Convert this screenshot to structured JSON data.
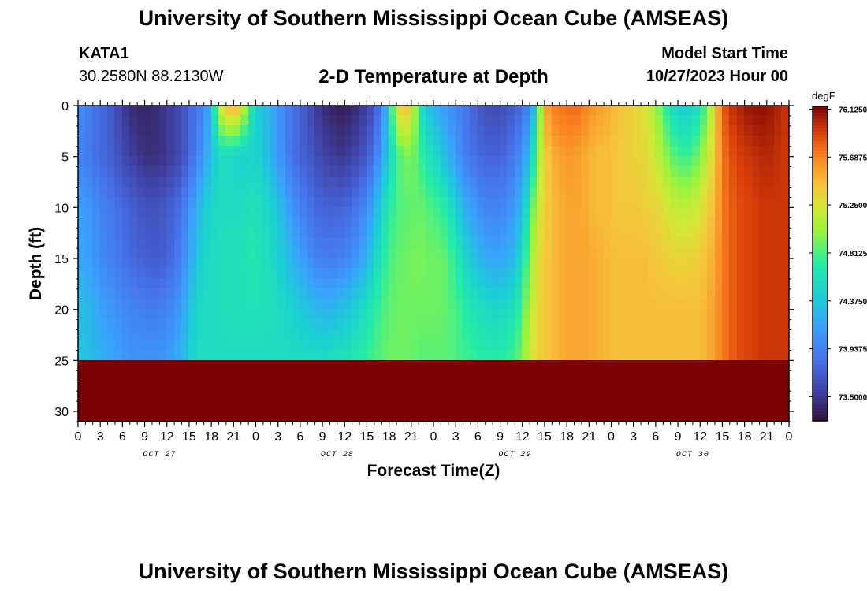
{
  "header": {
    "title": "University of Southern Mississippi Ocean Cube (AMSEAS)",
    "station_id": "KATA1",
    "station_coords": "30.2580N  88.2130W",
    "subtitle": "2-D Temperature at Depth",
    "model_start_label": "Model Start Time",
    "model_start_value": "10/27/2023 Hour 00"
  },
  "footer": {
    "title": "University of Southern Mississippi Ocean Cube (AMSEAS)"
  },
  "chart_data": {
    "type": "heatmap",
    "title": "2-D Temperature at Depth",
    "xlabel": "Forecast Time(Z)",
    "ylabel": "Depth (ft)",
    "xlim": [
      0,
      96
    ],
    "ylim": [
      0,
      31
    ],
    "y_ticks": [
      0,
      5,
      10,
      15,
      20,
      25,
      30
    ],
    "x_tick_labels": [
      "0",
      "3",
      "6",
      "9",
      "12",
      "15",
      "18",
      "21",
      "0",
      "3",
      "6",
      "9",
      "12",
      "15",
      "18",
      "21",
      "0",
      "3",
      "6",
      "9",
      "12",
      "15",
      "18",
      "21",
      "0",
      "3",
      "6",
      "9",
      "12",
      "15",
      "18",
      "21",
      "0"
    ],
    "day_labels": [
      {
        "label": "OCT 27",
        "hour": 11
      },
      {
        "label": "OCT 28",
        "hour": 35
      },
      {
        "label": "OCT 29",
        "hour": 59
      },
      {
        "label": "OCT 30",
        "hour": 83
      }
    ],
    "colorbar": {
      "unit": "degF",
      "range": [
        73.28,
        76.15
      ],
      "tick_values": [
        76.125,
        75.6875,
        75.25,
        74.8125,
        74.375,
        73.9375,
        73.5
      ],
      "tick_labels": [
        "76.1250",
        "75.6875",
        "75.2500",
        "74.8125",
        "74.3750",
        "73.9375",
        "73.5000"
      ]
    },
    "temperature_profiles": {
      "unit": "degF",
      "depths_ft": [
        0,
        5,
        10,
        15,
        20,
        25,
        31
      ],
      "hours": [
        0,
        1,
        2,
        3,
        4,
        5,
        6,
        7,
        8,
        9,
        10,
        11,
        12,
        13,
        14,
        15,
        16,
        17,
        18,
        19,
        20,
        21,
        22,
        23,
        24,
        25,
        26,
        27,
        28,
        29,
        30,
        31,
        32,
        33,
        34,
        35,
        36,
        37,
        38,
        39,
        40,
        41,
        42,
        43,
        44,
        45,
        46,
        47,
        48,
        49,
        50,
        51,
        52,
        53,
        54,
        55,
        56,
        57,
        58,
        59,
        60,
        61,
        62,
        63,
        64,
        65,
        66,
        67,
        68,
        69,
        70,
        71,
        72,
        73,
        74,
        75,
        76,
        77,
        78,
        79,
        80,
        81,
        82,
        83,
        84,
        85,
        86,
        87,
        88,
        89,
        90,
        91,
        92,
        93,
        94,
        95,
        96
      ],
      "values": [
        [
          74.05,
          73.95,
          74.15,
          74.15,
          74.35,
          74.35
        ],
        [
          74.0,
          73.9,
          74.1,
          74.15,
          74.3,
          74.35
        ],
        [
          73.85,
          73.85,
          74.05,
          74.1,
          74.25,
          74.3
        ],
        [
          73.8,
          73.8,
          73.95,
          74.0,
          74.15,
          74.25
        ],
        [
          73.75,
          73.75,
          73.9,
          73.95,
          74.1,
          74.2
        ],
        [
          73.65,
          73.7,
          73.85,
          73.9,
          74.05,
          74.15
        ],
        [
          73.55,
          73.6,
          73.8,
          73.85,
          74.0,
          74.1
        ],
        [
          73.45,
          73.55,
          73.75,
          73.8,
          73.95,
          74.05
        ],
        [
          73.4,
          73.5,
          73.7,
          73.75,
          73.95,
          74.05
        ],
        [
          73.4,
          73.45,
          73.65,
          73.75,
          73.9,
          74.05
        ],
        [
          73.4,
          73.45,
          73.65,
          73.7,
          73.9,
          74.05
        ],
        [
          73.45,
          73.45,
          73.65,
          73.7,
          73.9,
          74.05
        ],
        [
          73.5,
          73.5,
          73.7,
          73.75,
          73.95,
          74.1
        ],
        [
          73.55,
          73.55,
          73.75,
          73.8,
          74.0,
          74.15
        ],
        [
          73.6,
          73.6,
          73.85,
          73.95,
          74.1,
          74.25
        ],
        [
          73.75,
          73.75,
          74.0,
          74.1,
          74.3,
          74.4
        ],
        [
          73.85,
          73.9,
          74.2,
          74.35,
          74.5,
          74.55
        ],
        [
          73.95,
          74.1,
          74.4,
          74.5,
          74.55,
          74.55
        ],
        [
          74.25,
          74.3,
          74.5,
          74.55,
          74.55,
          74.55
        ],
        [
          75.1,
          74.55,
          74.55,
          74.55,
          74.55,
          74.55
        ],
        [
          75.45,
          74.55,
          74.55,
          74.6,
          74.6,
          74.55
        ],
        [
          75.55,
          74.5,
          74.55,
          74.6,
          74.6,
          74.55
        ],
        [
          75.45,
          74.45,
          74.55,
          74.6,
          74.6,
          74.55
        ],
        [
          74.8,
          74.45,
          74.6,
          74.65,
          74.6,
          74.55
        ],
        [
          74.45,
          74.5,
          74.6,
          74.65,
          74.6,
          74.55
        ],
        [
          74.35,
          74.4,
          74.55,
          74.6,
          74.6,
          74.55
        ],
        [
          74.25,
          74.25,
          74.5,
          74.55,
          74.6,
          74.55
        ],
        [
          74.05,
          74.1,
          74.35,
          74.45,
          74.55,
          74.55
        ],
        [
          73.95,
          73.95,
          74.2,
          74.35,
          74.5,
          74.55
        ],
        [
          73.85,
          73.85,
          74.05,
          74.25,
          74.45,
          74.55
        ],
        [
          73.75,
          73.75,
          73.95,
          74.15,
          74.4,
          74.55
        ],
        [
          73.65,
          73.7,
          73.85,
          74.05,
          74.35,
          74.55
        ],
        [
          73.55,
          73.65,
          73.8,
          73.95,
          74.3,
          74.55
        ],
        [
          73.45,
          73.55,
          73.75,
          73.9,
          74.25,
          74.55
        ],
        [
          73.4,
          73.55,
          73.75,
          73.9,
          74.25,
          74.55
        ],
        [
          73.35,
          73.5,
          73.75,
          73.9,
          74.3,
          74.6
        ],
        [
          73.35,
          73.5,
          73.75,
          73.95,
          74.35,
          74.6
        ],
        [
          73.4,
          73.55,
          73.8,
          74.0,
          74.4,
          74.65
        ],
        [
          73.45,
          73.6,
          73.9,
          74.1,
          74.5,
          74.7
        ],
        [
          73.55,
          73.7,
          74.0,
          74.25,
          74.6,
          74.75
        ],
        [
          73.65,
          73.85,
          74.2,
          74.45,
          74.7,
          74.8
        ],
        [
          73.9,
          74.1,
          74.45,
          74.65,
          74.8,
          74.85
        ],
        [
          74.4,
          74.45,
          74.7,
          74.8,
          74.85,
          74.9
        ],
        [
          75.3,
          74.75,
          74.8,
          74.85,
          74.9,
          74.9
        ],
        [
          75.45,
          74.9,
          74.85,
          74.9,
          74.9,
          74.9
        ],
        [
          75.4,
          74.95,
          74.85,
          74.9,
          74.9,
          74.9
        ],
        [
          74.7,
          74.8,
          74.9,
          74.95,
          74.9,
          74.85
        ],
        [
          74.4,
          74.65,
          74.85,
          74.9,
          74.9,
          74.85
        ],
        [
          74.25,
          74.55,
          74.8,
          74.9,
          74.9,
          74.85
        ],
        [
          74.15,
          74.4,
          74.75,
          74.9,
          74.9,
          74.85
        ],
        [
          74.05,
          74.25,
          74.65,
          74.85,
          74.85,
          74.85
        ],
        [
          73.95,
          74.1,
          74.45,
          74.7,
          74.8,
          74.8
        ],
        [
          73.9,
          73.95,
          74.25,
          74.55,
          74.75,
          74.8
        ],
        [
          73.8,
          73.85,
          74.15,
          74.4,
          74.65,
          74.75
        ],
        [
          73.7,
          73.8,
          74.05,
          74.3,
          74.6,
          74.75
        ],
        [
          73.65,
          73.75,
          73.95,
          74.2,
          74.55,
          74.7
        ],
        [
          73.6,
          73.75,
          73.95,
          74.15,
          74.5,
          74.7
        ],
        [
          73.6,
          73.75,
          73.95,
          74.15,
          74.5,
          74.7
        ],
        [
          73.65,
          73.8,
          74.0,
          74.2,
          74.55,
          74.75
        ],
        [
          73.7,
          73.9,
          74.1,
          74.3,
          74.6,
          74.8
        ],
        [
          73.8,
          74.05,
          74.3,
          74.55,
          74.8,
          74.95
        ],
        [
          74.0,
          74.3,
          74.7,
          74.95,
          75.1,
          75.2
        ],
        [
          74.45,
          74.9,
          75.15,
          75.25,
          75.3,
          75.35
        ],
        [
          75.5,
          75.35,
          75.35,
          75.4,
          75.4,
          75.4
        ],
        [
          75.7,
          75.5,
          75.45,
          75.45,
          75.45,
          75.45
        ],
        [
          75.75,
          75.55,
          75.5,
          75.5,
          75.5,
          75.5
        ],
        [
          75.75,
          75.6,
          75.55,
          75.55,
          75.55,
          75.55
        ],
        [
          75.8,
          75.6,
          75.55,
          75.55,
          75.55,
          75.55
        ],
        [
          75.75,
          75.55,
          75.55,
          75.55,
          75.55,
          75.55
        ],
        [
          75.65,
          75.5,
          75.5,
          75.55,
          75.55,
          75.55
        ],
        [
          75.6,
          75.45,
          75.45,
          75.5,
          75.5,
          75.5
        ],
        [
          75.55,
          75.45,
          75.45,
          75.5,
          75.5,
          75.5
        ],
        [
          75.5,
          75.45,
          75.45,
          75.45,
          75.45,
          75.45
        ],
        [
          75.45,
          75.4,
          75.4,
          75.45,
          75.45,
          75.45
        ],
        [
          75.4,
          75.4,
          75.4,
          75.45,
          75.45,
          75.45
        ],
        [
          75.35,
          75.35,
          75.4,
          75.45,
          75.45,
          75.45
        ],
        [
          75.3,
          75.35,
          75.4,
          75.45,
          75.45,
          75.45
        ],
        [
          75.2,
          75.3,
          75.35,
          75.45,
          75.45,
          75.45
        ],
        [
          75.05,
          75.2,
          75.35,
          75.4,
          75.45,
          75.45
        ],
        [
          74.8,
          75.05,
          75.3,
          75.4,
          75.45,
          75.45
        ],
        [
          74.6,
          74.9,
          75.2,
          75.35,
          75.45,
          75.45
        ],
        [
          74.45,
          74.8,
          75.15,
          75.35,
          75.45,
          75.45
        ],
        [
          74.4,
          74.75,
          75.15,
          75.35,
          75.45,
          75.45
        ],
        [
          74.45,
          74.8,
          75.15,
          75.35,
          75.45,
          75.45
        ],
        [
          74.6,
          74.95,
          75.25,
          75.4,
          75.45,
          75.45
        ],
        [
          74.9,
          75.15,
          75.35,
          75.45,
          75.5,
          75.5
        ],
        [
          75.3,
          75.4,
          75.5,
          75.55,
          75.6,
          75.6
        ],
        [
          75.8,
          75.7,
          75.7,
          75.7,
          75.7,
          75.7
        ],
        [
          75.95,
          75.85,
          75.8,
          75.8,
          75.8,
          75.8
        ],
        [
          76.0,
          75.9,
          75.85,
          75.85,
          75.85,
          75.85
        ],
        [
          76.05,
          75.95,
          75.9,
          75.9,
          75.9,
          75.9
        ],
        [
          76.1,
          75.95,
          75.9,
          75.9,
          75.9,
          75.9
        ],
        [
          76.1,
          76.0,
          75.95,
          75.95,
          75.95,
          75.95
        ],
        [
          76.1,
          76.0,
          75.95,
          75.95,
          75.95,
          75.95
        ],
        [
          76.05,
          76.0,
          75.95,
          75.95,
          75.95,
          75.95
        ],
        [
          76.0,
          75.95,
          75.95,
          75.95,
          75.95,
          75.95
        ],
        [
          75.95,
          75.95,
          75.95,
          75.95,
          75.95,
          75.95
        ]
      ]
    }
  }
}
